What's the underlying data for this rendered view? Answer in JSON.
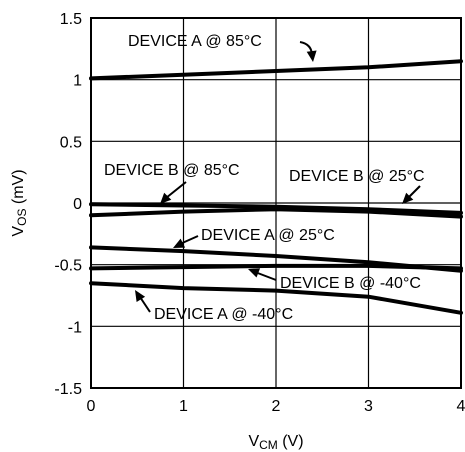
{
  "chart_data": {
    "type": "line",
    "xlabel": {
      "main": "V",
      "sub": "CM",
      "unit": " (V)"
    },
    "ylabel": {
      "main": "V",
      "sub": "OS",
      "unit": " (mV)"
    },
    "xlim": [
      0,
      4
    ],
    "ylim": [
      -1.5,
      1.5
    ],
    "x_ticks": [
      "0",
      "1",
      "2",
      "3",
      "4"
    ],
    "y_ticks": [
      "1.5",
      "1",
      "0.5",
      "0",
      "-0.5",
      "-1",
      "-1.5"
    ],
    "grid": true,
    "series": [
      {
        "name": "DEVICE A @ 85°C",
        "x": [
          0,
          1,
          2,
          3,
          4
        ],
        "y": [
          1.01,
          1.04,
          1.07,
          1.1,
          1.15
        ]
      },
      {
        "name": "DEVICE B @ 85°C",
        "x": [
          0,
          1,
          2,
          3,
          4
        ],
        "y": [
          -0.01,
          -0.02,
          -0.03,
          -0.05,
          -0.08
        ]
      },
      {
        "name": "DEVICE B @ 25°C",
        "x": [
          0,
          1,
          2,
          3,
          4
        ],
        "y": [
          -0.1,
          -0.07,
          -0.05,
          -0.07,
          -0.11
        ]
      },
      {
        "name": "DEVICE A @ 25°C",
        "x": [
          0,
          1,
          2,
          3,
          4
        ],
        "y": [
          -0.36,
          -0.39,
          -0.43,
          -0.48,
          -0.55
        ]
      },
      {
        "name": "DEVICE B @ -40°C",
        "x": [
          0,
          1,
          2,
          3,
          4
        ],
        "y": [
          -0.53,
          -0.52,
          -0.51,
          -0.51,
          -0.53
        ]
      },
      {
        "name": "DEVICE A @ -40°C",
        "x": [
          0,
          1,
          2,
          3,
          4
        ],
        "y": [
          -0.65,
          -0.69,
          -0.71,
          -0.76,
          -0.89
        ]
      }
    ],
    "annotations": [
      {
        "text": "DEVICE A @ 85°C"
      },
      {
        "text": "DEVICE B @ 85°C"
      },
      {
        "text": "DEVICE B @ 25°C"
      },
      {
        "text": "DEVICE A @ 25°C"
      },
      {
        "text": "DEVICE B @ -40°C"
      },
      {
        "text": "DEVICE A @ -40°C"
      }
    ]
  }
}
